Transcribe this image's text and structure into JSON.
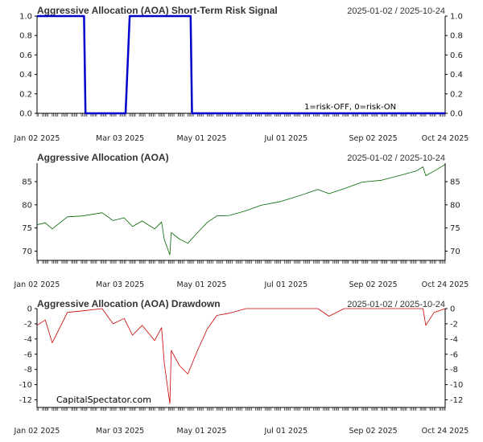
{
  "watermark": "CapitalSpectator.com",
  "colors": {
    "signal": "#0000cc",
    "price": "#006400",
    "drawdown": "#cc0000",
    "axis": "#000000"
  },
  "chart_data": [
    {
      "id": "signal",
      "type": "line",
      "title": "Aggressive Allocation (AOA) Short-Term Risk Signal",
      "range_label": "2025-01-02 / 2025-10-24",
      "annotation": "1=risk-OFF, 0=risk-ON",
      "ylim": [
        0,
        1
      ],
      "yticks": [
        "1.0",
        "0.8",
        "0.6",
        "0.4",
        "0.2",
        "0.0"
      ],
      "xticks": [
        "Jan 02 2025",
        "Mar 03 2025",
        "May 01 2025",
        "Jul 01 2025",
        "Sep 02 2025",
        "Oct 24 2025"
      ],
      "series": [
        {
          "x": [
            "2025-01-02",
            "2025-02-05",
            "2025-02-06",
            "2025-03-07",
            "2025-03-10",
            "2025-04-23",
            "2025-04-24",
            "2025-10-24"
          ],
          "values": [
            1,
            1,
            0,
            0,
            1,
            1,
            0,
            0
          ]
        }
      ]
    },
    {
      "id": "price",
      "type": "line",
      "title": "Aggressive Allocation (AOA)",
      "range_label": "2025-01-02 / 2025-10-24",
      "ylim": [
        68,
        89
      ],
      "yticks": [
        "85",
        "80",
        "75",
        "70"
      ],
      "xticks": [
        "Jan 02 2025",
        "Mar 03 2025",
        "May 01 2025",
        "Jul 01 2025",
        "Sep 02 2025",
        "Oct 24 2025"
      ],
      "series": [
        {
          "x": [
            "2025-01-02",
            "2025-01-08",
            "2025-01-13",
            "2025-01-24",
            "2025-02-04",
            "2025-02-18",
            "2025-02-26",
            "2025-03-06",
            "2025-03-12",
            "2025-03-19",
            "2025-03-28",
            "2025-04-02",
            "2025-04-04",
            "2025-04-08",
            "2025-04-09",
            "2025-04-15",
            "2025-04-21",
            "2025-04-28",
            "2025-05-05",
            "2025-05-12",
            "2025-05-21",
            "2025-06-02",
            "2025-06-13",
            "2025-06-27",
            "2025-07-10",
            "2025-07-24",
            "2025-08-01",
            "2025-08-12",
            "2025-08-25",
            "2025-09-08",
            "2025-09-22",
            "2025-10-03",
            "2025-10-08",
            "2025-10-10",
            "2025-10-16",
            "2025-10-24"
          ],
          "values": [
            75.7,
            76.1,
            74.8,
            77.4,
            77.6,
            78.3,
            76.6,
            77.2,
            75.3,
            76.5,
            74.8,
            76.3,
            72.5,
            69.2,
            74.0,
            72.6,
            71.7,
            74.0,
            76.2,
            77.6,
            77.7,
            78.7,
            79.9,
            80.7,
            81.9,
            83.3,
            82.4,
            83.5,
            84.9,
            85.3,
            86.4,
            87.3,
            88.2,
            86.3,
            87.3,
            88.7
          ]
        }
      ]
    },
    {
      "id": "drawdown",
      "type": "line",
      "title": "Aggressive Allocation (AOA) Drawdown",
      "range_label": "2025-01-02 / 2025-10-24",
      "ylim": [
        -13,
        0
      ],
      "yticks": [
        "0",
        "-2",
        "-4",
        "-6",
        "-8",
        "-10",
        "-12"
      ],
      "xticks": [
        "Jan 02 2025",
        "Mar 03 2025",
        "May 01 2025",
        "Jul 01 2025",
        "Sep 02 2025",
        "Oct 24 2025"
      ],
      "series": [
        {
          "x": [
            "2025-01-02",
            "2025-01-08",
            "2025-01-13",
            "2025-01-24",
            "2025-02-04",
            "2025-02-18",
            "2025-02-26",
            "2025-03-06",
            "2025-03-12",
            "2025-03-19",
            "2025-03-28",
            "2025-04-02",
            "2025-04-04",
            "2025-04-08",
            "2025-04-09",
            "2025-04-15",
            "2025-04-21",
            "2025-04-28",
            "2025-05-05",
            "2025-05-12",
            "2025-05-21",
            "2025-06-02",
            "2025-06-13",
            "2025-06-27",
            "2025-07-10",
            "2025-07-24",
            "2025-08-01",
            "2025-08-12",
            "2025-08-25",
            "2025-09-08",
            "2025-09-22",
            "2025-10-03",
            "2025-10-08",
            "2025-10-10",
            "2025-10-16",
            "2025-10-24"
          ],
          "values": [
            -2.2,
            -1.5,
            -4.5,
            -0.5,
            -0.3,
            0,
            -2.0,
            -1.3,
            -3.5,
            -2.2,
            -4.2,
            -2.5,
            -7.2,
            -12.5,
            -5.5,
            -7.5,
            -8.6,
            -5.5,
            -2.7,
            -0.9,
            -0.6,
            0,
            0,
            0,
            0,
            0,
            -1.0,
            0,
            0,
            0,
            0,
            0,
            0,
            -2.2,
            -0.5,
            0
          ]
        }
      ]
    }
  ]
}
